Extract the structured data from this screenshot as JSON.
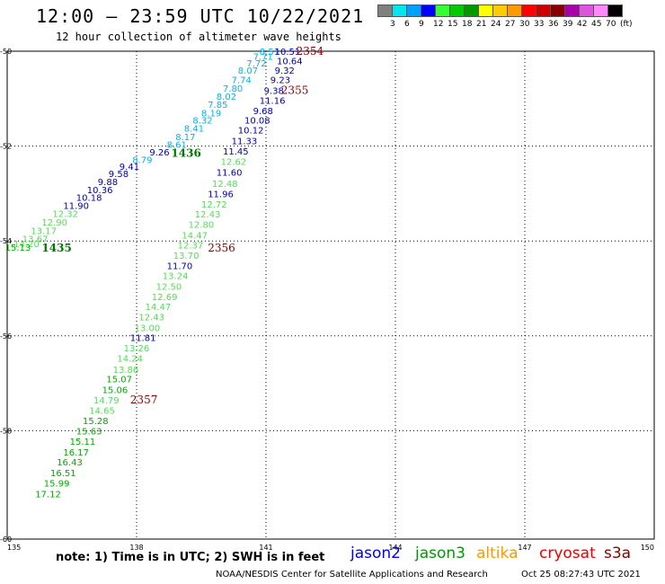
{
  "title": "12:00 — 23:59 UTC 10/22/2021",
  "subtitle": "12 hour collection of altimeter wave heights",
  "legend": {
    "colors": [
      "#808080",
      "#00e5ee",
      "#00a0ff",
      "#0000ff",
      "#33ff33",
      "#00cc00",
      "#009900",
      "#ffff00",
      "#ffcc00",
      "#ff9900",
      "#ff0000",
      "#cc0000",
      "#880000",
      "#aa00aa",
      "#dd55dd",
      "#ff88ff",
      "#000000"
    ],
    "labels": [
      "3",
      "6",
      "9",
      "12",
      "15",
      "18",
      "21",
      "24",
      "27",
      "30",
      "33",
      "36",
      "39",
      "42",
      "45",
      "70",
      "(ft)"
    ]
  },
  "axes": {
    "lon_ticks": [
      "135",
      "138",
      "141",
      "144",
      "147",
      "150"
    ],
    "lat_ticks": [
      "-50",
      "-52",
      "-54",
      "-56",
      "-58",
      "-60"
    ]
  },
  "swh_points": [
    {
      "t": "8.51",
      "lon": 140.85,
      "lat": -50.0,
      "c": "#00b4ee"
    },
    {
      "t": "10.51",
      "lon": 141.2,
      "lat": -50.0,
      "c": "#0000aa"
    },
    {
      "t": "7.71",
      "lon": 140.7,
      "lat": -50.1,
      "c": "#00b4ee"
    },
    {
      "t": "10.64",
      "lon": 141.25,
      "lat": -50.2,
      "c": "#0000aa"
    },
    {
      "t": "7.72",
      "lon": 140.55,
      "lat": -50.25,
      "c": "#00b4ee"
    },
    {
      "t": "9.32",
      "lon": 141.2,
      "lat": -50.4,
      "c": "#0000aa"
    },
    {
      "t": "8.07",
      "lon": 140.35,
      "lat": -50.4,
      "c": "#00b4ee"
    },
    {
      "t": "9.23",
      "lon": 141.1,
      "lat": -50.6,
      "c": "#0000aa"
    },
    {
      "t": "7.74",
      "lon": 140.2,
      "lat": -50.6,
      "c": "#00b4ee"
    },
    {
      "t": "7.80",
      "lon": 140.0,
      "lat": -50.78,
      "c": "#00b4ee"
    },
    {
      "t": "9.38",
      "lon": 140.95,
      "lat": -50.82,
      "c": "#0000aa"
    },
    {
      "t": "8.02",
      "lon": 139.85,
      "lat": -50.95,
      "c": "#00b4ee"
    },
    {
      "t": "11.16",
      "lon": 140.85,
      "lat": -51.03,
      "c": "#0000aa"
    },
    {
      "t": "7.85",
      "lon": 139.65,
      "lat": -51.12,
      "c": "#00b4ee"
    },
    {
      "t": "8.19",
      "lon": 139.5,
      "lat": -51.3,
      "c": "#00b4ee"
    },
    {
      "t": "9.68",
      "lon": 140.7,
      "lat": -51.25,
      "c": "#0000aa"
    },
    {
      "t": "8.32",
      "lon": 139.3,
      "lat": -51.45,
      "c": "#00b4ee"
    },
    {
      "t": "10.08",
      "lon": 140.5,
      "lat": -51.45,
      "c": "#0000aa"
    },
    {
      "t": "8.41",
      "lon": 139.1,
      "lat": -51.62,
      "c": "#00b4ee"
    },
    {
      "t": "10.12",
      "lon": 140.35,
      "lat": -51.66,
      "c": "#0000aa"
    },
    {
      "t": "8.17",
      "lon": 138.9,
      "lat": -51.8,
      "c": "#00b4ee"
    },
    {
      "t": "8.61",
      "lon": 138.7,
      "lat": -51.96,
      "c": "#00b4ee"
    },
    {
      "t": "11.33",
      "lon": 140.2,
      "lat": -51.88,
      "c": "#0000aa"
    },
    {
      "t": "9.26",
      "lon": 138.3,
      "lat": -52.12,
      "c": "#0000aa"
    },
    {
      "t": "8.79",
      "lon": 137.9,
      "lat": -52.28,
      "c": "#00b4ee"
    },
    {
      "t": "11.45",
      "lon": 140.0,
      "lat": -52.1,
      "c": "#0000aa"
    },
    {
      "t": "9.41",
      "lon": 137.6,
      "lat": -52.42,
      "c": "#0000aa"
    },
    {
      "t": "12.62",
      "lon": 139.95,
      "lat": -52.32,
      "c": "#55dd55"
    },
    {
      "t": "9.58",
      "lon": 137.35,
      "lat": -52.58,
      "c": "#0000aa"
    },
    {
      "t": "11.60",
      "lon": 139.85,
      "lat": -52.55,
      "c": "#0000aa"
    },
    {
      "t": "9.88",
      "lon": 137.1,
      "lat": -52.75,
      "c": "#0000aa"
    },
    {
      "t": "12.48",
      "lon": 139.75,
      "lat": -52.78,
      "c": "#55dd55"
    },
    {
      "t": "10.36",
      "lon": 136.85,
      "lat": -52.92,
      "c": "#0000aa"
    },
    {
      "t": "11.96",
      "lon": 139.65,
      "lat": -53.0,
      "c": "#0000aa"
    },
    {
      "t": "10.18",
      "lon": 136.6,
      "lat": -53.08,
      "c": "#0000aa"
    },
    {
      "t": "11.90",
      "lon": 136.3,
      "lat": -53.25,
      "c": "#0000aa"
    },
    {
      "t": "12.72",
      "lon": 139.5,
      "lat": -53.22,
      "c": "#55dd55"
    },
    {
      "t": "12.32",
      "lon": 136.05,
      "lat": -53.42,
      "c": "#55dd55"
    },
    {
      "t": "12.43",
      "lon": 139.35,
      "lat": -53.43,
      "c": "#55dd55"
    },
    {
      "t": "12.90",
      "lon": 135.8,
      "lat": -53.6,
      "c": "#55dd55"
    },
    {
      "t": "13.17",
      "lon": 135.55,
      "lat": -53.78,
      "c": "#55dd55"
    },
    {
      "t": "12.80",
      "lon": 139.2,
      "lat": -53.65,
      "c": "#55dd55"
    },
    {
      "t": "13.67",
      "lon": 135.35,
      "lat": -53.95,
      "c": "#55dd55"
    },
    {
      "t": "14.47",
      "lon": 139.05,
      "lat": -53.87,
      "c": "#55dd55"
    },
    {
      "t": "14.20",
      "lon": 135.15,
      "lat": -54.05,
      "c": "#55dd55"
    },
    {
      "t": "15.13",
      "lon": 134.95,
      "lat": -54.13,
      "c": "#00aa00"
    },
    {
      "t": "12.37",
      "lon": 138.95,
      "lat": -54.08,
      "c": "#55dd55"
    },
    {
      "t": "13.70",
      "lon": 138.85,
      "lat": -54.3,
      "c": "#55dd55"
    },
    {
      "t": "11.70",
      "lon": 138.7,
      "lat": -54.52,
      "c": "#0000aa"
    },
    {
      "t": "13.24",
      "lon": 138.6,
      "lat": -54.73,
      "c": "#55dd55"
    },
    {
      "t": "12.50",
      "lon": 138.45,
      "lat": -54.95,
      "c": "#55dd55"
    },
    {
      "t": "12.69",
      "lon": 138.35,
      "lat": -55.17,
      "c": "#55dd55"
    },
    {
      "t": "14.47",
      "lon": 138.2,
      "lat": -55.38,
      "c": "#55dd55"
    },
    {
      "t": "12.43",
      "lon": 138.05,
      "lat": -55.6,
      "c": "#55dd55"
    },
    {
      "t": "13.00",
      "lon": 137.95,
      "lat": -55.82,
      "c": "#55dd55"
    },
    {
      "t": "11.81",
      "lon": 137.85,
      "lat": -56.03,
      "c": "#0000aa"
    },
    {
      "t": "13.26",
      "lon": 137.7,
      "lat": -56.25,
      "c": "#55dd55"
    },
    {
      "t": "14.24",
      "lon": 137.55,
      "lat": -56.47,
      "c": "#55dd55"
    },
    {
      "t": "13.86",
      "lon": 137.45,
      "lat": -56.7,
      "c": "#55dd55"
    },
    {
      "t": "15.07",
      "lon": 137.3,
      "lat": -56.9,
      "c": "#00aa00"
    },
    {
      "t": "15.06",
      "lon": 137.2,
      "lat": -57.13,
      "c": "#00aa00"
    },
    {
      "t": "14.79",
      "lon": 137.0,
      "lat": -57.35,
      "c": "#55dd55"
    },
    {
      "t": "14.65",
      "lon": 136.9,
      "lat": -57.57,
      "c": "#55dd55"
    },
    {
      "t": "15.28",
      "lon": 136.75,
      "lat": -57.78,
      "c": "#00aa00"
    },
    {
      "t": "15.63",
      "lon": 136.6,
      "lat": -58.0,
      "c": "#00aa00"
    },
    {
      "t": "15.11",
      "lon": 136.45,
      "lat": -58.22,
      "c": "#00aa00"
    },
    {
      "t": "16.17",
      "lon": 136.3,
      "lat": -58.45,
      "c": "#00aa00"
    },
    {
      "t": "16.43",
      "lon": 136.15,
      "lat": -58.66,
      "c": "#00aa00"
    },
    {
      "t": "16.51",
      "lon": 136.0,
      "lat": -58.88,
      "c": "#00aa00"
    },
    {
      "t": "15.99",
      "lon": 135.85,
      "lat": -59.1,
      "c": "#00aa00"
    },
    {
      "t": "17.12",
      "lon": 135.65,
      "lat": -59.33,
      "c": "#00aa00"
    }
  ],
  "time_labels": [
    {
      "t": "2354",
      "lon": 141.7,
      "lat": -50.0,
      "c": "#880000"
    },
    {
      "t": "2355",
      "lon": 141.35,
      "lat": -50.82,
      "c": "#880000"
    },
    {
      "t": "1436",
      "lon": 138.8,
      "lat": -52.15,
      "c": "#007700"
    },
    {
      "t": "2356",
      "lon": 139.65,
      "lat": -54.15,
      "c": "#880000"
    },
    {
      "t": "1435",
      "lon": 135.8,
      "lat": -54.15,
      "c": "#007700"
    },
    {
      "t": "2357",
      "lon": 137.85,
      "lat": -57.35,
      "c": "#880000"
    }
  ],
  "note": "note:  1) Time is in UTC;  2) SWH is in feet",
  "satellites": [
    {
      "name": "jason2",
      "color": "#0000ee"
    },
    {
      "name": "jason3",
      "color": "#009900"
    },
    {
      "name": "altika",
      "color": "#ff9900"
    },
    {
      "name": "cryosat",
      "color": "#ee0000"
    },
    {
      "name": "s3a",
      "color": "#880000"
    }
  ],
  "credit": "NOAA/NESDIS Center for Satellite Applications and Research",
  "timestamp": "Oct 25 08:27:43 UTC 2021"
}
